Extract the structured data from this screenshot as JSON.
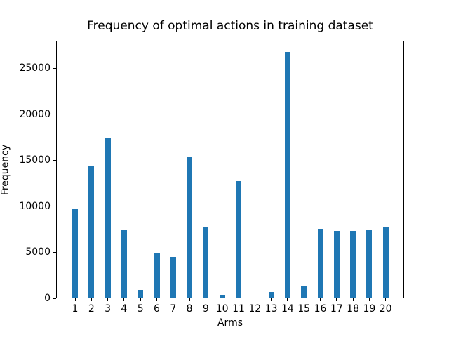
{
  "chart_data": {
    "type": "bar",
    "title": "Frequency of optimal actions in training dataset",
    "xlabel": "Arms",
    "ylabel": "Frequency",
    "categories": [
      "1",
      "2",
      "3",
      "4",
      "5",
      "6",
      "7",
      "8",
      "9",
      "10",
      "11",
      "12",
      "13",
      "14",
      "15",
      "16",
      "17",
      "18",
      "19",
      "20"
    ],
    "values": [
      9700,
      14300,
      17350,
      7300,
      850,
      4800,
      4400,
      15250,
      7650,
      300,
      12650,
      0,
      600,
      26700,
      1200,
      7450,
      7250,
      7250,
      7400,
      7600
    ],
    "yticks": [
      0,
      5000,
      10000,
      15000,
      20000,
      25000
    ],
    "ylim": [
      0,
      28000
    ],
    "bar_color": "#1f77b4",
    "grid": false,
    "legend_position": "none"
  }
}
